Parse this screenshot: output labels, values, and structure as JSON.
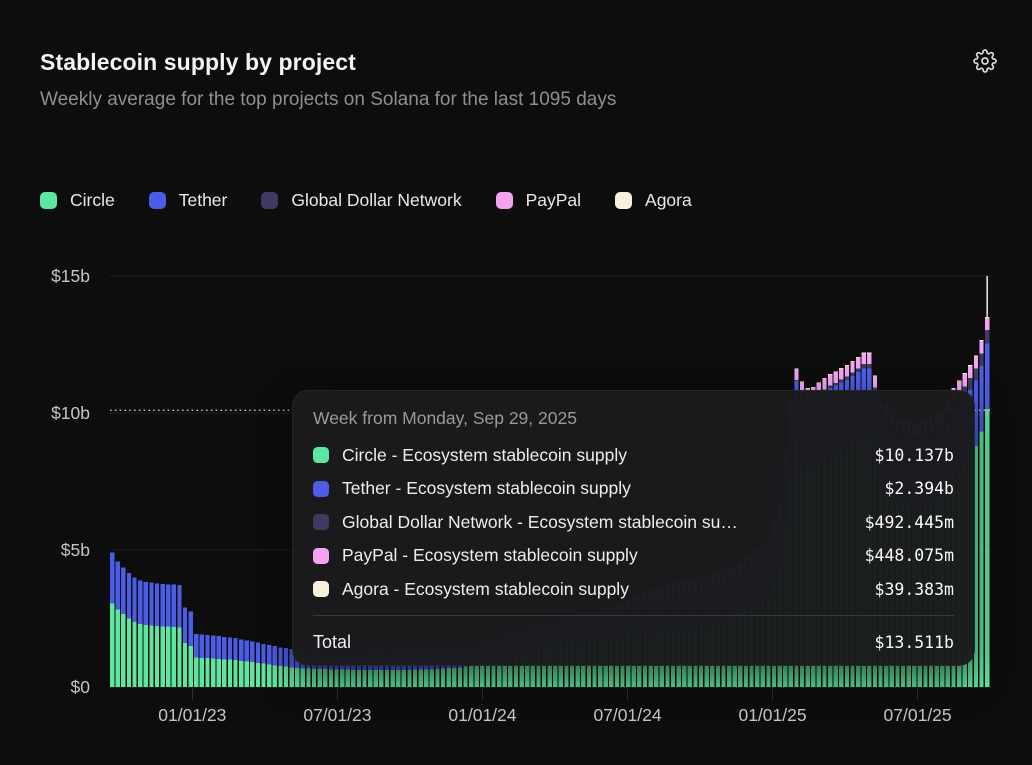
{
  "header": {
    "title": "Stablecoin supply by project",
    "subtitle": "Weekly average for the top projects on Solana for the last 1095 days"
  },
  "chart_data": {
    "type": "bar",
    "stacked": true,
    "title": "Stablecoin supply by project",
    "series": [
      {
        "name": "Circle",
        "color": "#5EE6A1"
      },
      {
        "name": "Tether",
        "color": "#4C5DE5"
      },
      {
        "name": "Global Dollar Network",
        "color": "#3E3A63"
      },
      {
        "name": "PayPal",
        "color": "#F2A4EE"
      },
      {
        "name": "Agora",
        "color": "#F6F0DD"
      }
    ],
    "x_axis": {
      "tick_labels": [
        "01/01/23",
        "07/01/23",
        "01/01/24",
        "07/01/24",
        "01/01/25",
        "07/01/25"
      ],
      "interval": "weekly",
      "total_bars": 157,
      "start_week": "2022-10-03",
      "end_week": "2025-09-29"
    },
    "y_axis": {
      "tick_labels": [
        "$15b",
        "$10b",
        "$5b",
        "$0"
      ],
      "tick_values_billions": [
        15,
        10,
        5,
        0
      ],
      "min": 0,
      "max": 15,
      "unit": "$ billions"
    },
    "keyframes_note": "weekly stacked values in $ billions, order [Circle, Tether, Global Dollar Network, PayPal, Agora]; bars between keyframe weeks are linearly interpolated",
    "keyframes": [
      [
        0,
        [
          3.05,
          1.85,
          0,
          0,
          0
        ]
      ],
      [
        1,
        [
          2.82,
          1.76,
          0,
          0,
          0
        ]
      ],
      [
        2,
        [
          2.66,
          1.7,
          0,
          0,
          0
        ]
      ],
      [
        3,
        [
          2.5,
          1.66,
          0,
          0,
          0
        ]
      ],
      [
        4,
        [
          2.38,
          1.62,
          0,
          0,
          0
        ]
      ],
      [
        5,
        [
          2.3,
          1.58,
          0,
          0,
          0
        ]
      ],
      [
        6,
        [
          2.26,
          1.57,
          0,
          0,
          0
        ]
      ],
      [
        8,
        [
          2.22,
          1.56,
          0,
          0,
          0
        ]
      ],
      [
        12,
        [
          2.18,
          1.54,
          0,
          0,
          0
        ]
      ],
      [
        13,
        [
          1.6,
          1.3,
          0,
          0,
          0
        ]
      ],
      [
        14,
        [
          1.5,
          1.26,
          0,
          0,
          0
        ]
      ],
      [
        15,
        [
          1.08,
          0.86,
          0,
          0,
          0
        ]
      ],
      [
        18,
        [
          1.04,
          0.84,
          0,
          0,
          0
        ]
      ],
      [
        22,
        [
          0.98,
          0.8,
          0,
          0,
          0
        ]
      ],
      [
        26,
        [
          0.88,
          0.74,
          0,
          0,
          0
        ]
      ],
      [
        30,
        [
          0.76,
          0.69,
          0,
          0,
          0
        ]
      ],
      [
        34,
        [
          0.68,
          0.66,
          0,
          0,
          0
        ]
      ],
      [
        38,
        [
          0.65,
          0.67,
          0,
          0,
          0
        ]
      ],
      [
        44,
        [
          0.62,
          0.7,
          0,
          0,
          0
        ]
      ],
      [
        52,
        [
          0.62,
          0.74,
          0,
          0,
          0
        ]
      ],
      [
        58,
        [
          0.65,
          0.77,
          0,
          0,
          0
        ]
      ],
      [
        62,
        [
          0.72,
          0.79,
          0,
          0,
          0
        ]
      ],
      [
        66,
        [
          0.85,
          0.82,
          0,
          0,
          0
        ]
      ],
      [
        70,
        [
          1.02,
          0.87,
          0,
          0,
          0
        ]
      ],
      [
        74,
        [
          1.25,
          0.94,
          0,
          0,
          0
        ]
      ],
      [
        78,
        [
          1.45,
          1.0,
          0,
          0,
          0
        ]
      ],
      [
        82,
        [
          1.6,
          1.04,
          0,
          0,
          0
        ]
      ],
      [
        86,
        [
          1.7,
          1.07,
          0,
          0.01,
          0
        ]
      ],
      [
        90,
        [
          1.78,
          1.1,
          0,
          0.1,
          0
        ]
      ],
      [
        94,
        [
          1.87,
          1.12,
          0,
          0.35,
          0
        ]
      ],
      [
        98,
        [
          1.97,
          1.15,
          0,
          0.58,
          0
        ]
      ],
      [
        102,
        [
          2.08,
          1.17,
          0,
          0.64,
          0
        ]
      ],
      [
        106,
        [
          2.25,
          1.21,
          0,
          0.58,
          0
        ]
      ],
      [
        110,
        [
          2.5,
          1.3,
          0.02,
          0.5,
          0
        ]
      ],
      [
        114,
        [
          2.9,
          1.45,
          0.03,
          0.44,
          0.01
        ]
      ],
      [
        117,
        [
          3.35,
          1.62,
          0.03,
          0.41,
          0.01
        ]
      ],
      [
        119,
        [
          4.3,
          1.9,
          0.03,
          0.4,
          0.01
        ]
      ],
      [
        120,
        [
          5.9,
          2.15,
          0.03,
          0.4,
          0.01
        ]
      ],
      [
        121,
        [
          7.7,
          2.3,
          0.03,
          0.4,
          0.02
        ]
      ],
      [
        122,
        [
          8.82,
          2.35,
          0.03,
          0.4,
          0.02
        ]
      ],
      [
        123,
        [
          8.32,
          2.38,
          0.04,
          0.39,
          0.02
        ]
      ],
      [
        124,
        [
          8.06,
          2.4,
          0.05,
          0.39,
          0.02
        ]
      ],
      [
        125,
        [
          8.07,
          2.41,
          0.06,
          0.39,
          0.02
        ]
      ],
      [
        126,
        [
          8.21,
          2.42,
          0.07,
          0.4,
          0.02
        ]
      ],
      [
        127,
        [
          8.35,
          2.43,
          0.08,
          0.4,
          0.02
        ]
      ],
      [
        128,
        [
          8.47,
          2.44,
          0.09,
          0.4,
          0.02
        ]
      ],
      [
        129,
        [
          8.55,
          2.45,
          0.1,
          0.4,
          0.02
        ]
      ],
      [
        130,
        [
          8.65,
          2.46,
          0.11,
          0.4,
          0.02
        ]
      ],
      [
        131,
        [
          8.74,
          2.47,
          0.12,
          0.4,
          0.02
        ]
      ],
      [
        132,
        [
          8.87,
          2.48,
          0.13,
          0.4,
          0.02
        ]
      ],
      [
        133,
        [
          9.0,
          2.49,
          0.14,
          0.4,
          0.02
        ]
      ],
      [
        134,
        [
          9.13,
          2.5,
          0.15,
          0.4,
          0.02
        ]
      ],
      [
        135,
        [
          9.12,
          2.5,
          0.16,
          0.4,
          0.02
        ]
      ],
      [
        136,
        [
          8.28,
          2.48,
          0.17,
          0.42,
          0.02
        ]
      ],
      [
        137,
        [
          7.5,
          2.44,
          0.18,
          0.43,
          0.02
        ]
      ],
      [
        140,
        [
          6.75,
          2.36,
          0.22,
          0.44,
          0.02
        ]
      ],
      [
        144,
        [
          6.55,
          2.31,
          0.28,
          0.45,
          0.025
        ]
      ],
      [
        148,
        [
          6.95,
          2.32,
          0.35,
          0.45,
          0.03
        ]
      ],
      [
        150,
        [
          7.7,
          2.34,
          0.4,
          0.45,
          0.03
        ]
      ],
      [
        151,
        [
          7.95,
          2.35,
          0.41,
          0.45,
          0.032
        ]
      ],
      [
        152,
        [
          8.19,
          2.36,
          0.42,
          0.45,
          0.034
        ]
      ],
      [
        153,
        [
          8.47,
          2.37,
          0.43,
          0.45,
          0.035
        ]
      ],
      [
        154,
        [
          8.8,
          2.38,
          0.44,
          0.45,
          0.037
        ]
      ],
      [
        155,
        [
          9.32,
          2.39,
          0.46,
          0.45,
          0.038
        ]
      ],
      [
        156,
        [
          10.137,
          2.394,
          0.492,
          0.448,
          0.039
        ]
      ]
    ],
    "hovered_bar": {
      "week_index": 156,
      "total_billions": 13.511,
      "crosshair_horizontal_billions": 10.1
    },
    "legend_position": "top",
    "grid": "horizontal-faint"
  },
  "tooltip": {
    "title": "Week from Monday, Sep 29, 2025",
    "rows": [
      {
        "series": 0,
        "label": "Circle - Ecosystem stablecoin supply",
        "value": "$10.137b"
      },
      {
        "series": 1,
        "label": "Tether - Ecosystem stablecoin supply",
        "value": "$2.394b"
      },
      {
        "series": 2,
        "label": "Global Dollar Network - Ecosystem stablecoin su…",
        "value": "$492.445m"
      },
      {
        "series": 3,
        "label": "PayPal - Ecosystem stablecoin supply",
        "value": "$448.075m"
      },
      {
        "series": 4,
        "label": "Agora - Ecosystem stablecoin supply",
        "value": "$39.383m"
      }
    ],
    "total_label": "Total",
    "total_value": "$13.511b"
  },
  "colors": {
    "background": "#0d0d0d",
    "tooltip_background": "#1b1b1d",
    "axis_text": "#c5c5c5",
    "gridline": "#202020",
    "crosshair": "#d8d8d8"
  }
}
